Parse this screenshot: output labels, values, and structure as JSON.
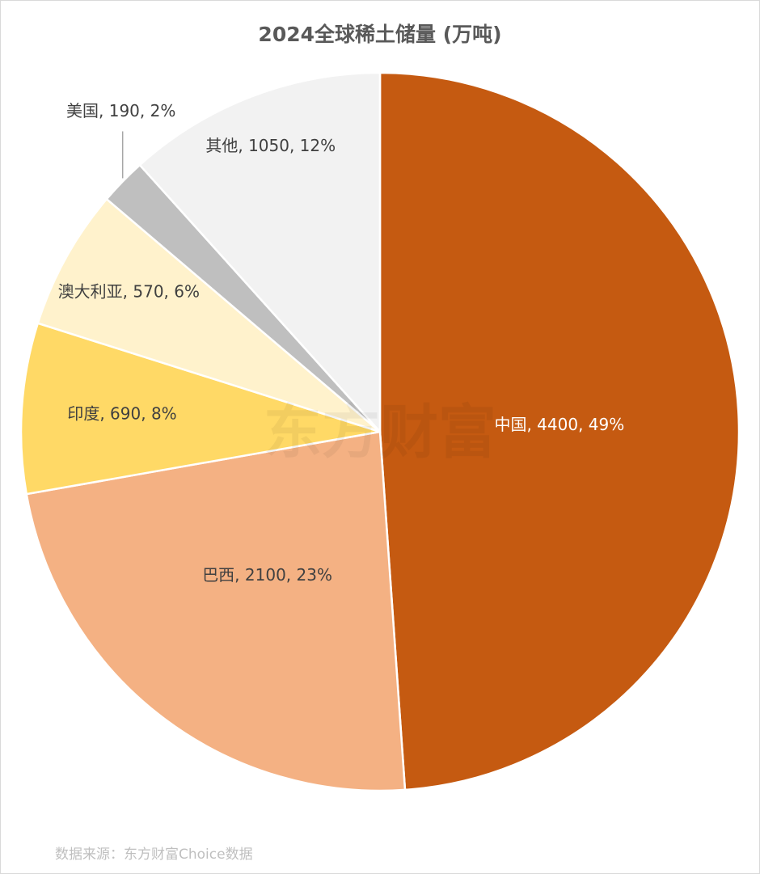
{
  "chart_data": {
    "type": "pie",
    "title": "2024全球稀土储量 (万吨)",
    "categories": [
      "中国",
      "巴西",
      "印度",
      "澳大利亚",
      "美国",
      "其他"
    ],
    "values": [
      4400,
      2100,
      690,
      570,
      190,
      1050
    ],
    "value_labels": [
      "中国, 4400, 49%",
      "巴西, 2100, 23%",
      "印度, 690, 8%",
      "澳大利亚, 570, 6%",
      "美国, 190, 2%",
      "其他, 1050, 12%"
    ],
    "colors": [
      "#c55a11",
      "#f4b183",
      "#ffd966",
      "#fff2cc",
      "#bfbfbf",
      "#f2f2f2"
    ],
    "source": "数据来源：东方财富Choice数据",
    "watermark": "东方财富"
  }
}
